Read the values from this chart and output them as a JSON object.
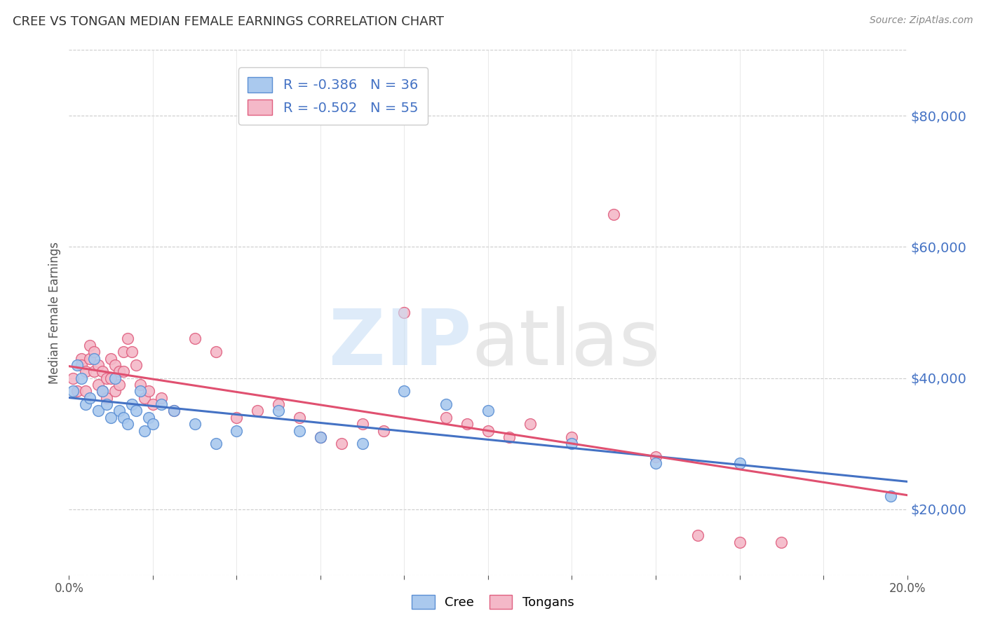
{
  "title": "CREE VS TONGAN MEDIAN FEMALE EARNINGS CORRELATION CHART",
  "source": "Source: ZipAtlas.com",
  "ylabel": "Median Female Earnings",
  "ytick_labels": [
    "$20,000",
    "$40,000",
    "$60,000",
    "$80,000"
  ],
  "ytick_values": [
    20000,
    40000,
    60000,
    80000
  ],
  "xlim": [
    0.0,
    0.2
  ],
  "ylim": [
    10000,
    90000
  ],
  "cree_color": "#aac9ee",
  "tongan_color": "#f4b8c8",
  "cree_edge_color": "#5b8fd4",
  "tongan_edge_color": "#e06080",
  "cree_line_color": "#4472c4",
  "tongan_line_color": "#e05070",
  "R_cree": -0.386,
  "N_cree": 36,
  "R_tongan": -0.502,
  "N_tongan": 55,
  "background_color": "#ffffff",
  "grid_color": "#cccccc",
  "legend_label_color": "#4472c4",
  "axis_label_color": "#4472c4",
  "cree_data_x": [
    0.001,
    0.002,
    0.003,
    0.004,
    0.005,
    0.006,
    0.007,
    0.008,
    0.009,
    0.01,
    0.011,
    0.012,
    0.013,
    0.014,
    0.015,
    0.016,
    0.017,
    0.018,
    0.019,
    0.02,
    0.022,
    0.025,
    0.03,
    0.035,
    0.04,
    0.05,
    0.055,
    0.06,
    0.07,
    0.08,
    0.09,
    0.1,
    0.12,
    0.14,
    0.16,
    0.196
  ],
  "cree_data_y": [
    38000,
    42000,
    40000,
    36000,
    37000,
    43000,
    35000,
    38000,
    36000,
    34000,
    40000,
    35000,
    34000,
    33000,
    36000,
    35000,
    38000,
    32000,
    34000,
    33000,
    36000,
    35000,
    33000,
    30000,
    32000,
    35000,
    32000,
    31000,
    30000,
    38000,
    36000,
    35000,
    30000,
    27000,
    27000,
    22000
  ],
  "tongan_data_x": [
    0.001,
    0.002,
    0.003,
    0.003,
    0.004,
    0.004,
    0.005,
    0.005,
    0.006,
    0.006,
    0.007,
    0.007,
    0.008,
    0.008,
    0.009,
    0.009,
    0.01,
    0.01,
    0.011,
    0.011,
    0.012,
    0.012,
    0.013,
    0.013,
    0.014,
    0.015,
    0.016,
    0.017,
    0.018,
    0.019,
    0.02,
    0.022,
    0.025,
    0.03,
    0.035,
    0.04,
    0.045,
    0.05,
    0.055,
    0.06,
    0.065,
    0.07,
    0.075,
    0.08,
    0.09,
    0.095,
    0.1,
    0.105,
    0.11,
    0.12,
    0.13,
    0.14,
    0.15,
    0.16,
    0.17
  ],
  "tongan_data_y": [
    40000,
    38000,
    43000,
    42000,
    41000,
    38000,
    45000,
    43000,
    44000,
    41000,
    42000,
    39000,
    41000,
    38000,
    40000,
    37000,
    43000,
    40000,
    42000,
    38000,
    41000,
    39000,
    44000,
    41000,
    46000,
    44000,
    42000,
    39000,
    37000,
    38000,
    36000,
    37000,
    35000,
    46000,
    44000,
    34000,
    35000,
    36000,
    34000,
    31000,
    30000,
    33000,
    32000,
    50000,
    34000,
    33000,
    32000,
    31000,
    33000,
    31000,
    65000,
    28000,
    16000,
    15000,
    15000
  ]
}
